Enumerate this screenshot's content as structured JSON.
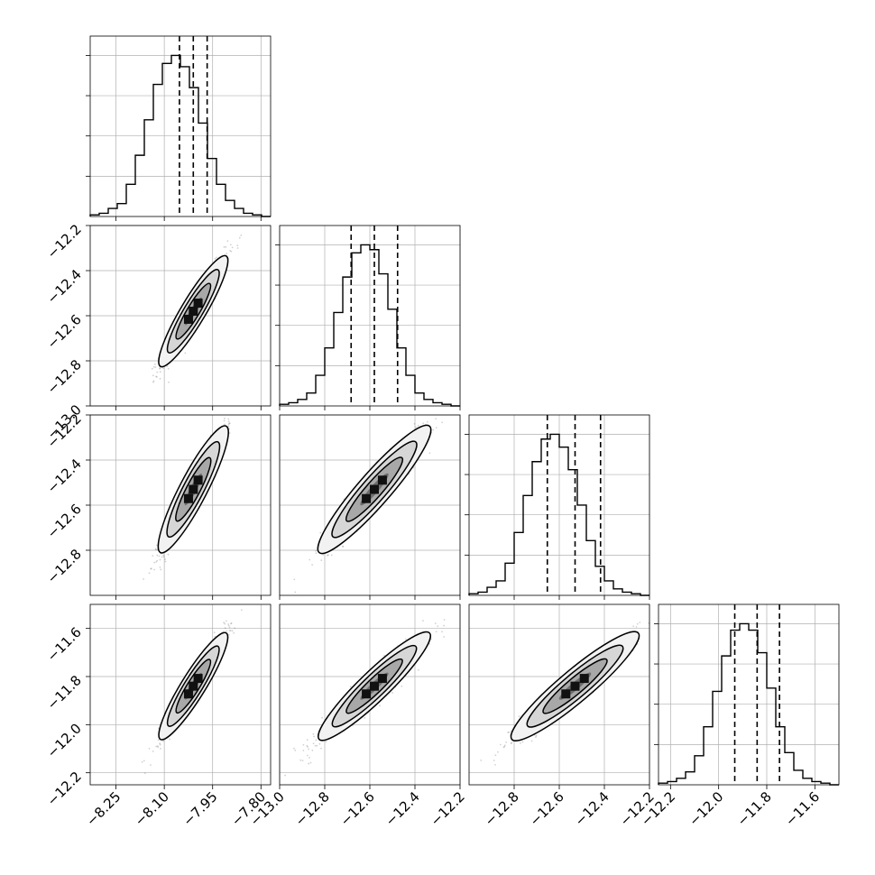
{
  "chart_data": {
    "type": "corner",
    "grid": true,
    "n_params": 4,
    "params": [
      {
        "median": -8.01,
        "q16": -8.053,
        "q84": -7.967,
        "range": [
          -8.33,
          -7.77
        ],
        "ticks": [
          "-8.25",
          "-8.10",
          "-7.95",
          "-7.80"
        ],
        "tick_values": [
          -8.25,
          -8.1,
          -7.95,
          -7.8
        ]
      },
      {
        "median": -12.58,
        "q16": -12.683,
        "q84": -12.477,
        "range": [
          -13.0,
          -12.2
        ],
        "ticks": [
          "-13.0",
          "-12.8",
          "-12.6",
          "-12.4",
          "-12.2"
        ],
        "tick_values": [
          -13.0,
          -12.8,
          -12.6,
          -12.4,
          -12.2
        ]
      },
      {
        "median": -12.53,
        "q16": -12.653,
        "q84": -12.417,
        "range": [
          -13.0,
          -12.2
        ],
        "ticks": [
          "-12.8",
          "-12.6",
          "-12.4",
          "-12.2"
        ],
        "tick_values": [
          -12.8,
          -12.6,
          -12.4,
          -12.2
        ]
      },
      {
        "median": -11.84,
        "q16": -11.933,
        "q84": -11.747,
        "range": [
          -12.25,
          -11.5
        ],
        "ticks": [
          "-12.2",
          "-12.0",
          "-11.8",
          "-11.6"
        ],
        "tick_values": [
          -12.2,
          -12.0,
          -11.8,
          -11.6
        ]
      }
    ],
    "row_ticks": [
      null,
      {
        "labels": [
          "-12.2",
          "-12.4",
          "-12.6",
          "-12.8",
          "-13.0"
        ],
        "values": [
          -12.2,
          -12.4,
          -12.6,
          -12.8,
          -13.0
        ]
      },
      {
        "labels": [
          "-12.2",
          "-12.4",
          "-12.6",
          "-12.8"
        ],
        "values": [
          -12.2,
          -12.4,
          -12.6,
          -12.8
        ]
      },
      {
        "labels": [
          "-11.6",
          "-11.8",
          "-12.0",
          "-12.2"
        ],
        "values": [
          -11.6,
          -11.8,
          -12.0,
          -12.2
        ]
      }
    ],
    "histograms": [
      [
        0.01,
        0.02,
        0.05,
        0.08,
        0.2,
        0.38,
        0.6,
        0.82,
        0.95,
        1.0,
        0.93,
        0.8,
        0.58,
        0.36,
        0.2,
        0.1,
        0.05,
        0.02,
        0.01,
        0.0
      ],
      [
        0.01,
        0.02,
        0.04,
        0.08,
        0.19,
        0.36,
        0.58,
        0.8,
        0.95,
        1.0,
        0.97,
        0.82,
        0.6,
        0.36,
        0.19,
        0.08,
        0.04,
        0.02,
        0.01,
        0.0
      ],
      [
        0.01,
        0.02,
        0.05,
        0.09,
        0.2,
        0.39,
        0.62,
        0.83,
        0.97,
        1.0,
        0.92,
        0.78,
        0.56,
        0.34,
        0.18,
        0.09,
        0.04,
        0.02,
        0.01,
        0.0
      ],
      [
        0.01,
        0.02,
        0.04,
        0.08,
        0.18,
        0.36,
        0.58,
        0.8,
        0.96,
        1.0,
        0.96,
        0.82,
        0.6,
        0.36,
        0.2,
        0.09,
        0.04,
        0.02,
        0.01,
        0.0
      ]
    ],
    "correlation": 0.96
  }
}
